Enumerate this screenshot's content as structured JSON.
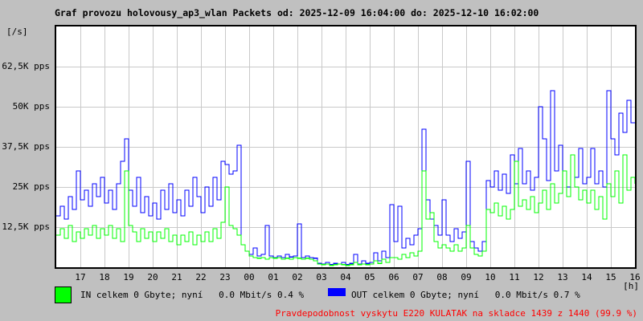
{
  "title": "Graf provozu holovousy_ap3_wlan Packets od: 2025-12-09 16:04:00 do: 2025-12-10 16:02:00",
  "axes": {
    "y_unit_label": "[/s]",
    "x_unit_label": "[h]",
    "y_ticks": [
      "62,5K pps",
      "50K pps",
      "37,5K pps",
      "25K pps",
      "12,5K pps"
    ],
    "y_tick_values_kpps": [
      62.5,
      50,
      37.5,
      25,
      12.5
    ],
    "x_ticks": [
      "17",
      "18",
      "19",
      "20",
      "21",
      "22",
      "23",
      "00",
      "01",
      "02",
      "03",
      "04",
      "05",
      "06",
      "07",
      "08",
      "09",
      "10",
      "11",
      "12",
      "13",
      "14",
      "15",
      "16"
    ]
  },
  "legend": {
    "in_label": "IN celkem 0 Gbyte; nyní   0.0 Mbit/s 0.4 %",
    "out_label": "OUT celkem 0 Gbyte; nyní   0.0 Mbit/s 0.7 %",
    "in_color": "#00ff00",
    "out_color": "#0000ff"
  },
  "footer": {
    "probability_note": "Pravdepodobnost vyskytu E220 KULATAK na skladce 1439 z 1440 (99.9 %)",
    "note_color": "#ff0000"
  },
  "chart_data": {
    "type": "line",
    "title": "Graf provozu holovousy_ap3_wlan Packets",
    "x_start": "2025-12-09 16:04:00",
    "x_end": "2025-12-10 16:02:00",
    "x_span_hours": 24,
    "point_interval_minutes": 10,
    "xlabel": "[h]",
    "ylabel": "[/s]",
    "ylim_kpps": [
      0,
      75
    ],
    "y_gridlines_kpps": [
      12.5,
      25,
      37.5,
      50,
      62.5
    ],
    "grid": true,
    "legend_position": "bottom",
    "series": [
      {
        "name": "OUT",
        "color": "#0000ff",
        "unit": "Kpps",
        "values_kpps": [
          16,
          19,
          15,
          22,
          18,
          30,
          21,
          24,
          19,
          26,
          22,
          28,
          20,
          24,
          18,
          26,
          33,
          40,
          24,
          19,
          28,
          17,
          22,
          16,
          20,
          15,
          24,
          18,
          26,
          17,
          21,
          16,
          24,
          19,
          28,
          22,
          17,
          25,
          19,
          28,
          21,
          33,
          32,
          29,
          30,
          38,
          7,
          5,
          4,
          6,
          3.5,
          4,
          13,
          3.5,
          3,
          3.5,
          3,
          4,
          3.2,
          3.5,
          13.5,
          3,
          3.5,
          3,
          2.8,
          1.2,
          1,
          1.5,
          0.8,
          1.2,
          1,
          1.5,
          0.8,
          1.2,
          4,
          1,
          2,
          1.2,
          1.5,
          4.5,
          2,
          5,
          3,
          19.5,
          8,
          19,
          6,
          9,
          7,
          10,
          12,
          43,
          21,
          15,
          13,
          10,
          21,
          10,
          8,
          12,
          9,
          11,
          33,
          8,
          6,
          5,
          8,
          27,
          25,
          30,
          24,
          29,
          23,
          35,
          26,
          37,
          26,
          30,
          24,
          28,
          50,
          40,
          27,
          55,
          30,
          38,
          30,
          25,
          35,
          28,
          37,
          26,
          28,
          37,
          26,
          30,
          25,
          55,
          40,
          35,
          48,
          42,
          52,
          45,
          45
        ]
      },
      {
        "name": "IN",
        "color": "#00ff00",
        "unit": "Kpps",
        "values_kpps": [
          10,
          12,
          9,
          13,
          8,
          11,
          9,
          12,
          10,
          13,
          9,
          12,
          10,
          13,
          9,
          12,
          8,
          30,
          13,
          11,
          8,
          12,
          9,
          11,
          8,
          11,
          9,
          12,
          8,
          10,
          7,
          10,
          8,
          11,
          7,
          10,
          8,
          11,
          8,
          12,
          9,
          14,
          25,
          13,
          12,
          10,
          7,
          5,
          3.5,
          3,
          2.8,
          3,
          2.5,
          3,
          2.8,
          3,
          2.5,
          2.8,
          2.5,
          3,
          2.8,
          2.5,
          2.8,
          2.5,
          2,
          1,
          0.8,
          1,
          0.6,
          0.8,
          1,
          0.8,
          0.6,
          0.8,
          1.5,
          0.8,
          1,
          0.8,
          1,
          2,
          1.2,
          2.5,
          1.5,
          3,
          3,
          2.5,
          4,
          3,
          4.5,
          3.5,
          5,
          30,
          15,
          17,
          8,
          6,
          7,
          6,
          5,
          7,
          5,
          6,
          13,
          6,
          4,
          3.5,
          5,
          18,
          17,
          20,
          16,
          19,
          15,
          18,
          33,
          19,
          21,
          18,
          22,
          17,
          20,
          24,
          18,
          26,
          20,
          23,
          30,
          22,
          35,
          25,
          21,
          24,
          20,
          24,
          18,
          22,
          15,
          26,
          22,
          30,
          20,
          35,
          24,
          28,
          26
        ]
      }
    ]
  }
}
